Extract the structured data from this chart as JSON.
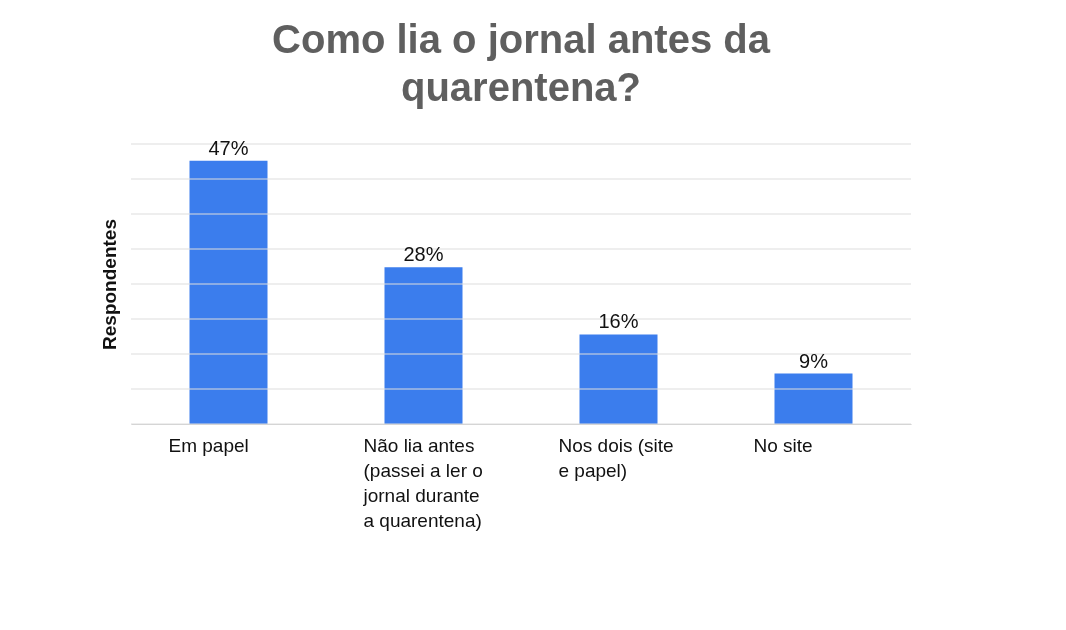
{
  "chart_data": {
    "type": "bar",
    "title": "Como lia o jornal antes da quarentena?",
    "ylabel": "Respondentes",
    "categories": [
      "Em papel",
      "Não lia antes (passei a ler o jornal durante a quarentena)",
      "Nos dois (site e papel)",
      "No site"
    ],
    "values": [
      47,
      28,
      16,
      9
    ],
    "color": "#3b7ded",
    "value_labels": [
      "47%",
      "28%",
      "16%",
      "9%"
    ],
    "ylim": [
      0,
      50
    ],
    "yticks": [
      {
        "value": 0,
        "label": null
      },
      {
        "value": 6.25,
        "label": null
      },
      {
        "value": 12.5,
        "label": null
      },
      {
        "value": 18.75,
        "label": null
      },
      {
        "value": 25,
        "label": null
      },
      {
        "value": 31.25,
        "label": null
      },
      {
        "value": 37.5,
        "label": null
      },
      {
        "value": 43.75,
        "label": null
      },
      {
        "value": 50,
        "label": null
      }
    ],
    "grid": true
  }
}
